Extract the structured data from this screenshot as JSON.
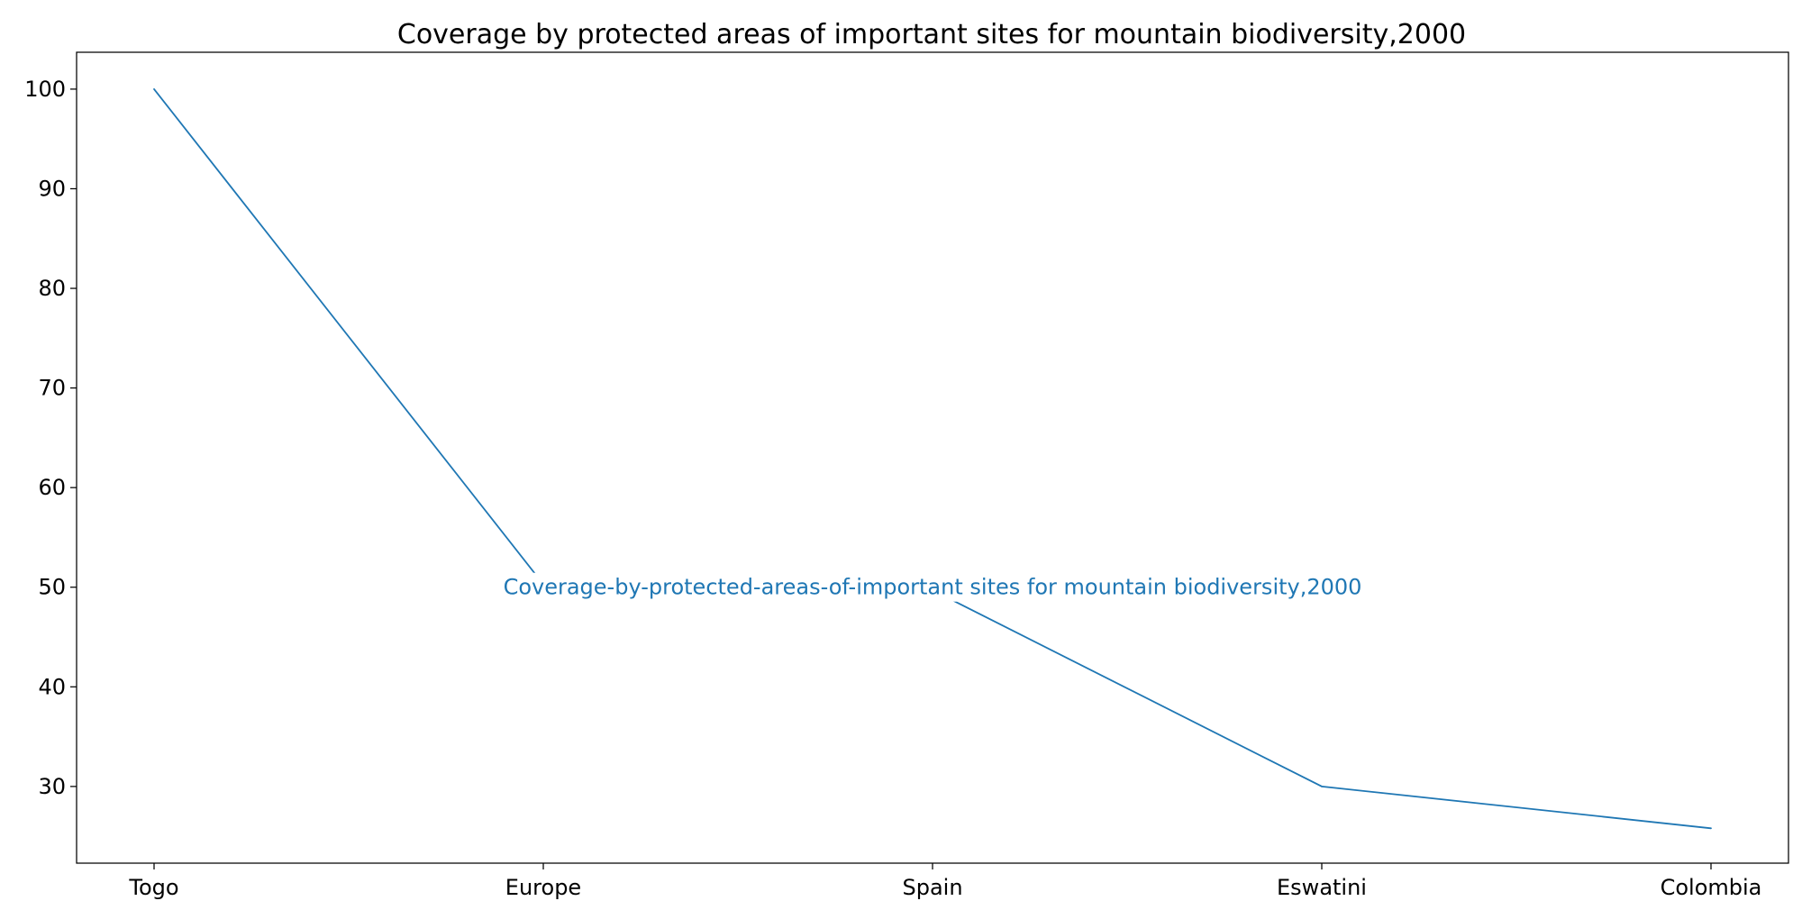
{
  "chart_data": {
    "type": "line",
    "title": "Coverage by protected areas of important sites for mountain biodiversity,2000",
    "xlabel": "",
    "ylabel": "",
    "categories": [
      "Togo",
      "Europe",
      "Spain",
      "Eswatini",
      "Colombia"
    ],
    "series": [
      {
        "name": "Coverage-by-protected-areas-of-important sites for mountain biodiversity,2000",
        "values": [
          100,
          50.3,
          49.7,
          30.0,
          25.8
        ],
        "color": "#1f77b4"
      }
    ],
    "ylim": [
      22.3,
      103.7
    ],
    "yticks": [
      30,
      40,
      50,
      60,
      70,
      80,
      90,
      100
    ],
    "grid": false,
    "legend": "none",
    "annotation": {
      "text": "Coverage-by-protected-areas-of-important sites for mountain biodiversity,2000",
      "x": "Spain",
      "y": 50
    }
  }
}
